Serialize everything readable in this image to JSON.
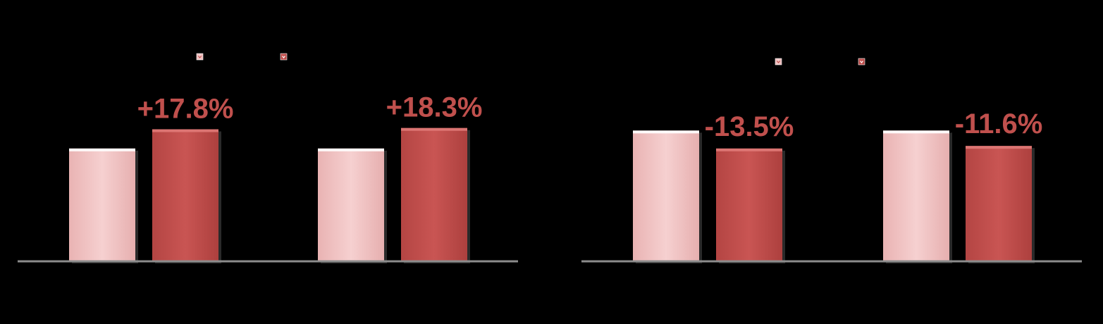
{
  "colors": {
    "background": "#000000",
    "series_a": "#f2c4c4",
    "series_b": "#c0504d",
    "label": "#c0504d",
    "axis": "#8c8c8c"
  },
  "chart_data": [
    {
      "type": "bar",
      "title": "",
      "xlabel": "",
      "ylabel": "",
      "legend_position": "top",
      "grid": false,
      "categories": [
        "",
        ""
      ],
      "ylim": [
        0,
        1.35
      ],
      "series": [
        {
          "values": [
            0.88,
            0.88
          ]
        },
        {
          "values": [
            1.03,
            1.04
          ]
        }
      ],
      "annotations": [
        "+17.8%",
        "+18.3%"
      ]
    },
    {
      "type": "bar",
      "title": "",
      "xlabel": "",
      "ylabel": "",
      "legend_position": "top",
      "grid": false,
      "categories": [
        "",
        ""
      ],
      "ylim": [
        0,
        1.35
      ],
      "series": [
        {
          "values": [
            1.02,
            1.02
          ]
        },
        {
          "values": [
            0.88,
            0.9
          ]
        }
      ],
      "annotations": [
        "-13.5%",
        "-11.6%"
      ]
    }
  ]
}
